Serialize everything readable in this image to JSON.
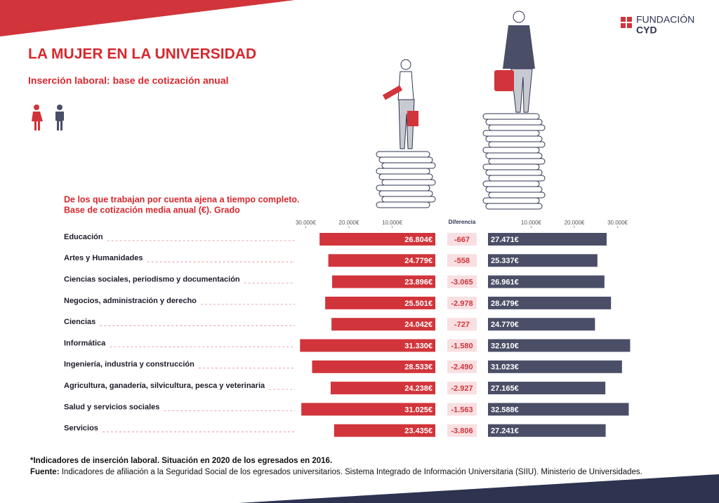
{
  "header": {
    "logo_top": "FUNDACIÓN",
    "logo_bottom": "CYD",
    "title": "LA MUJER EN LA UNIVERSIDAD",
    "subtitle": "Inserción laboral: base de cotización anual"
  },
  "chart_data": {
    "type": "butterfly",
    "title_lines": [
      "De los que trabajan por cuenta ajena a tiempo completo.",
      "Base de cotización media anual (€). Grado"
    ],
    "categories": [
      "Educación",
      "Artes y Humanidades",
      "Ciencias sociales, periodismo y documentación",
      "Negocios, administración y derecho",
      "Ciencias",
      "Informática",
      "Ingeniería, industria y construcción",
      "Agricultura, ganadería, silvicultura, pesca y veterinaria",
      "Salud y servicios sociales",
      "Servicios"
    ],
    "xlim": [
      0,
      33000
    ],
    "xticks": [
      {
        "value": 10000,
        "label": "10.000€"
      },
      {
        "value": 20000,
        "label": "20.000€"
      },
      {
        "value": 30000,
        "label": "30.000€"
      }
    ],
    "series": [
      {
        "color": "#d1343a",
        "side": "left",
        "values": [
          26804,
          24779,
          23896,
          25501,
          24042,
          31330,
          28533,
          24238,
          31025,
          23435
        ],
        "value_labels": [
          "26.804€",
          "24.779€",
          "23.896€",
          "25.501€",
          "24.042€",
          "31.330€",
          "28.533€",
          "24.238€",
          "31.025€",
          "23.435€"
        ]
      },
      {
        "color": "#4a4e66",
        "side": "right",
        "values": [
          27471,
          25337,
          26961,
          28479,
          24770,
          32910,
          31023,
          27165,
          32588,
          27241
        ],
        "value_labels": [
          "27.471€",
          "25.337€",
          "26.961€",
          "28.479€",
          "24.770€",
          "32.910€",
          "31.023€",
          "27.165€",
          "32.588€",
          "27.241€"
        ]
      }
    ],
    "difference": {
      "title": "Diferencia",
      "values": [
        -667,
        -558,
        -3065,
        -2978,
        -727,
        -1580,
        -2490,
        -2927,
        -1563,
        -3806
      ],
      "value_labels": [
        "-667",
        "-558",
        "-3.065",
        "-2.978",
        "-727",
        "-1.580",
        "-2.490",
        "-2.927",
        "-1.563",
        "-3.806"
      ]
    }
  },
  "footer": {
    "note": "*Indicadores de inserción laboral. Situación en 2020 de los egresados en 2016.",
    "source_label": "Fuente:",
    "source": "Indicadores de afiliación a la Seguridad Social de los egresados universitarios. Sistema Integrado de Información Universitaria (SIIU). Ministerio de Universidades."
  }
}
